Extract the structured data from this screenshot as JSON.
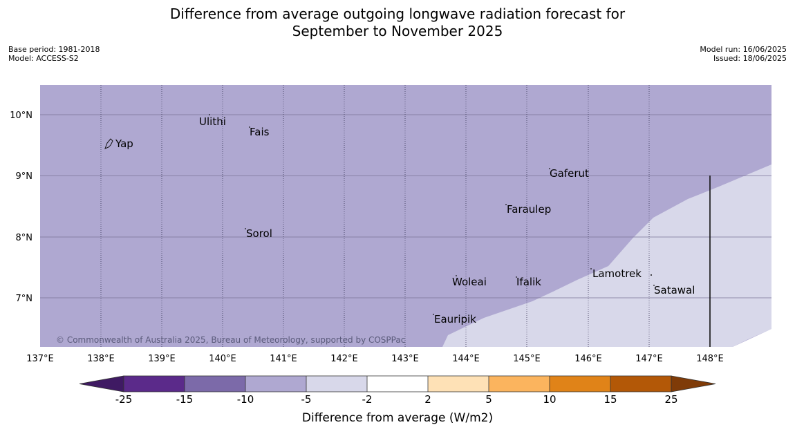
{
  "title_line1": "Difference from average outgoing longwave radiation forecast for",
  "title_line2": "September to November 2025",
  "base_period": "Base period: 1981-2018",
  "model": "Model: ACCESS-S2",
  "model_run": "Model run: 16/06/2025",
  "issued": "Issued: 18/06/2025",
  "credit": "© Commonwealth of Australia 2025, Bureau of Meteorology, supported by COSPPac",
  "lat_labels": [
    "10°N",
    "9°N",
    "8°N",
    "7°N"
  ],
  "lon_labels": [
    "137°E",
    "138°E",
    "139°E",
    "140°E",
    "141°E",
    "142°E",
    "143°E",
    "144°E",
    "145°E",
    "146°E",
    "147°E",
    "148°E"
  ],
  "places": [
    "Ulithi",
    "Fais",
    "Yap",
    "Gaferut",
    "Faraulep",
    "Sorol",
    "Lamotrek",
    "Woleai",
    "Ifalik",
    "Satawal",
    "Eauripik"
  ],
  "colorbar": {
    "ticks": [
      "-25",
      "-15",
      "-10",
      "-5",
      "-2",
      "2",
      "5",
      "10",
      "15",
      "25"
    ],
    "title": "Difference from average (W/m2)",
    "colors": [
      "#3f1a63",
      "#5b2a8a",
      "#7c6aa9",
      "#afa8d1",
      "#d8d8ea",
      "#ffffff",
      "#fee1b6",
      "#fbb45e",
      "#e08318",
      "#b35807",
      "#7f3b08"
    ]
  },
  "map_colors": {
    "below_minus5": "#afa8d1",
    "minus5_to_minus2": "#d8d8ea"
  }
}
